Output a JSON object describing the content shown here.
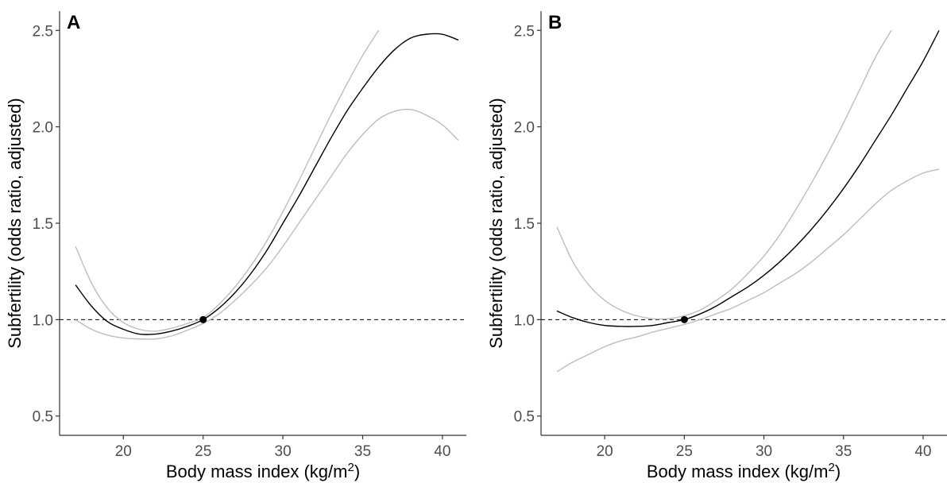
{
  "chart_data": [
    {
      "type": "line",
      "panel_label": "A",
      "xlabel": "Body mass index (kg/m²)",
      "xlabel_main": "Body mass index (kg/m",
      "xlabel_sup": "2",
      "xlabel_end": ")",
      "ylabel": "Subfertility (odds ratio, adjusted)",
      "xlim": [
        16,
        41.5
      ],
      "ylim": [
        0.4,
        2.6
      ],
      "xticks": [
        "20",
        "25",
        "30",
        "35",
        "40"
      ],
      "yticks": [
        "0.5",
        "1.0",
        "1.5",
        "2.0",
        "2.5"
      ],
      "reference_line": 1.0,
      "reference_point": {
        "x": 25,
        "y": 1.0
      },
      "grid": false,
      "series": [
        {
          "role": "estimate",
          "color": "#000000",
          "x": [
            17,
            18,
            19,
            20,
            21,
            22,
            23,
            24,
            25,
            26,
            27,
            28,
            29,
            30,
            31,
            32,
            33,
            34,
            35,
            36,
            37,
            38,
            39,
            40,
            41
          ],
          "y": [
            1.18,
            1.07,
            0.99,
            0.95,
            0.925,
            0.925,
            0.94,
            0.965,
            1.0,
            1.06,
            1.14,
            1.24,
            1.36,
            1.5,
            1.64,
            1.79,
            1.94,
            2.08,
            2.2,
            2.31,
            2.4,
            2.46,
            2.48,
            2.48,
            2.45
          ]
        },
        {
          "role": "upper_ci",
          "color": "#bdbdbd",
          "x": [
            17,
            18,
            19,
            20,
            21,
            22,
            23,
            24,
            25,
            26,
            27,
            28,
            29,
            30,
            31,
            32,
            33,
            34,
            35,
            36
          ],
          "y": [
            1.38,
            1.19,
            1.06,
            0.985,
            0.95,
            0.94,
            0.955,
            0.98,
            1.01,
            1.08,
            1.17,
            1.28,
            1.41,
            1.56,
            1.72,
            1.89,
            2.06,
            2.22,
            2.37,
            2.5
          ]
        },
        {
          "role": "lower_ci",
          "color": "#bdbdbd",
          "x": [
            17,
            18,
            19,
            20,
            21,
            22,
            23,
            24,
            25,
            26,
            27,
            28,
            29,
            30,
            31,
            32,
            33,
            34,
            35,
            36,
            37,
            38,
            39,
            40,
            41
          ],
          "y": [
            1.0,
            0.95,
            0.92,
            0.905,
            0.9,
            0.9,
            0.915,
            0.945,
            0.98,
            1.03,
            1.1,
            1.18,
            1.27,
            1.38,
            1.5,
            1.62,
            1.74,
            1.86,
            1.96,
            2.04,
            2.08,
            2.09,
            2.06,
            2.01,
            1.93
          ]
        }
      ]
    },
    {
      "type": "line",
      "panel_label": "B",
      "xlabel": "Body mass index (kg/m²)",
      "xlabel_main": "Body mass index (kg/m",
      "xlabel_sup": "2",
      "xlabel_end": ")",
      "ylabel": "Subfertility (odds ratio, adjusted)",
      "xlim": [
        16,
        41.5
      ],
      "ylim": [
        0.4,
        2.6
      ],
      "xticks": [
        "20",
        "25",
        "30",
        "35",
        "40"
      ],
      "yticks": [
        "0.5",
        "1.0",
        "1.5",
        "2.0",
        "2.5"
      ],
      "reference_line": 1.0,
      "reference_point": {
        "x": 25,
        "y": 1.0
      },
      "grid": false,
      "series": [
        {
          "role": "estimate",
          "color": "#000000",
          "x": [
            17,
            18,
            19,
            20,
            21,
            22,
            23,
            24,
            25,
            26,
            27,
            28,
            29,
            30,
            31,
            32,
            33,
            34,
            35,
            36,
            37,
            38,
            39,
            40,
            41
          ],
          "y": [
            1.045,
            1.01,
            0.985,
            0.97,
            0.965,
            0.965,
            0.97,
            0.985,
            1.0,
            1.03,
            1.07,
            1.12,
            1.17,
            1.23,
            1.3,
            1.38,
            1.47,
            1.57,
            1.68,
            1.8,
            1.93,
            2.06,
            2.2,
            2.34,
            2.5
          ]
        },
        {
          "role": "upper_ci",
          "color": "#bdbdbd",
          "x": [
            17,
            18,
            19,
            20,
            21,
            22,
            23,
            24,
            25,
            26,
            27,
            28,
            29,
            30,
            31,
            32,
            33,
            34,
            35,
            36,
            37,
            38
          ],
          "y": [
            1.48,
            1.3,
            1.18,
            1.1,
            1.05,
            1.02,
            1.005,
            1.005,
            1.02,
            1.05,
            1.1,
            1.16,
            1.24,
            1.33,
            1.44,
            1.57,
            1.71,
            1.86,
            2.02,
            2.19,
            2.36,
            2.5
          ]
        },
        {
          "role": "lower_ci",
          "color": "#bdbdbd",
          "x": [
            17,
            18,
            19,
            20,
            21,
            22,
            23,
            24,
            25,
            26,
            27,
            28,
            29,
            30,
            31,
            32,
            33,
            34,
            35,
            36,
            37,
            38,
            39,
            40,
            41
          ],
          "y": [
            0.73,
            0.78,
            0.82,
            0.86,
            0.89,
            0.91,
            0.935,
            0.955,
            0.975,
            1.0,
            1.03,
            1.06,
            1.1,
            1.14,
            1.19,
            1.24,
            1.3,
            1.37,
            1.44,
            1.52,
            1.6,
            1.67,
            1.72,
            1.76,
            1.78
          ]
        }
      ]
    }
  ]
}
